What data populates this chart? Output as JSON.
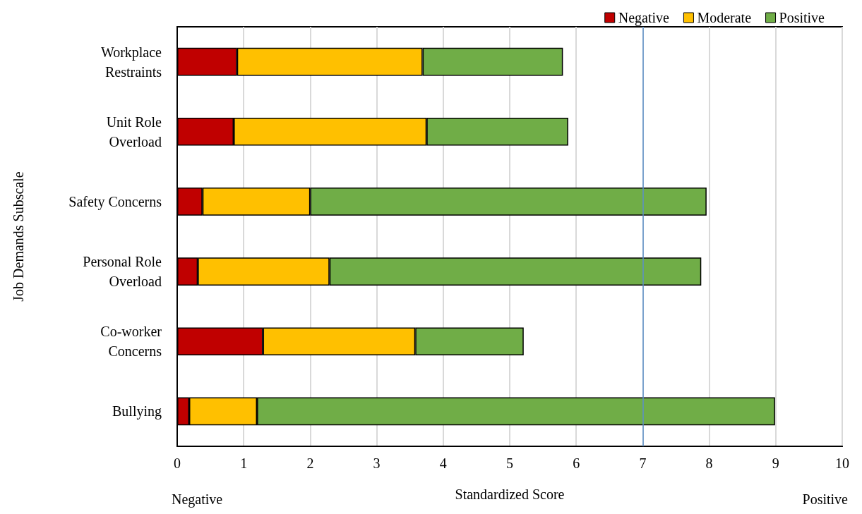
{
  "chart_data": {
    "type": "bar",
    "orientation": "horizontal",
    "stacked": true,
    "ylabel": "Job Demands Subscale",
    "xlabel": "Standardized Score",
    "categories": [
      "Workplace\nRestraints",
      "Unit Role\nOverload",
      "Safety Concerns",
      "Personal Role\nOverload",
      "Co-worker\nConcerns",
      "Bullying"
    ],
    "series": [
      {
        "name": "Negative",
        "color": "#c00000",
        "values": [
          0.9,
          0.85,
          0.38,
          0.31,
          1.29,
          0.18
        ]
      },
      {
        "name": "Moderate",
        "color": "#ffc000",
        "values": [
          2.79,
          2.9,
          1.62,
          1.98,
          2.29,
          1.02
        ]
      },
      {
        "name": "Positive",
        "color": "#70ad47",
        "values": [
          2.11,
          2.13,
          5.96,
          5.59,
          1.63,
          7.79
        ]
      }
    ],
    "xlim": [
      0,
      10
    ],
    "xticks": [
      0,
      1,
      2,
      3,
      4,
      5,
      6,
      7,
      8,
      9,
      10
    ],
    "ref_lines": [
      {
        "axis": "x",
        "value": 7,
        "color": "#5b8fc9"
      }
    ],
    "annotations": [
      "Negative",
      "Positive"
    ],
    "grid": "x",
    "legend": "top right"
  }
}
